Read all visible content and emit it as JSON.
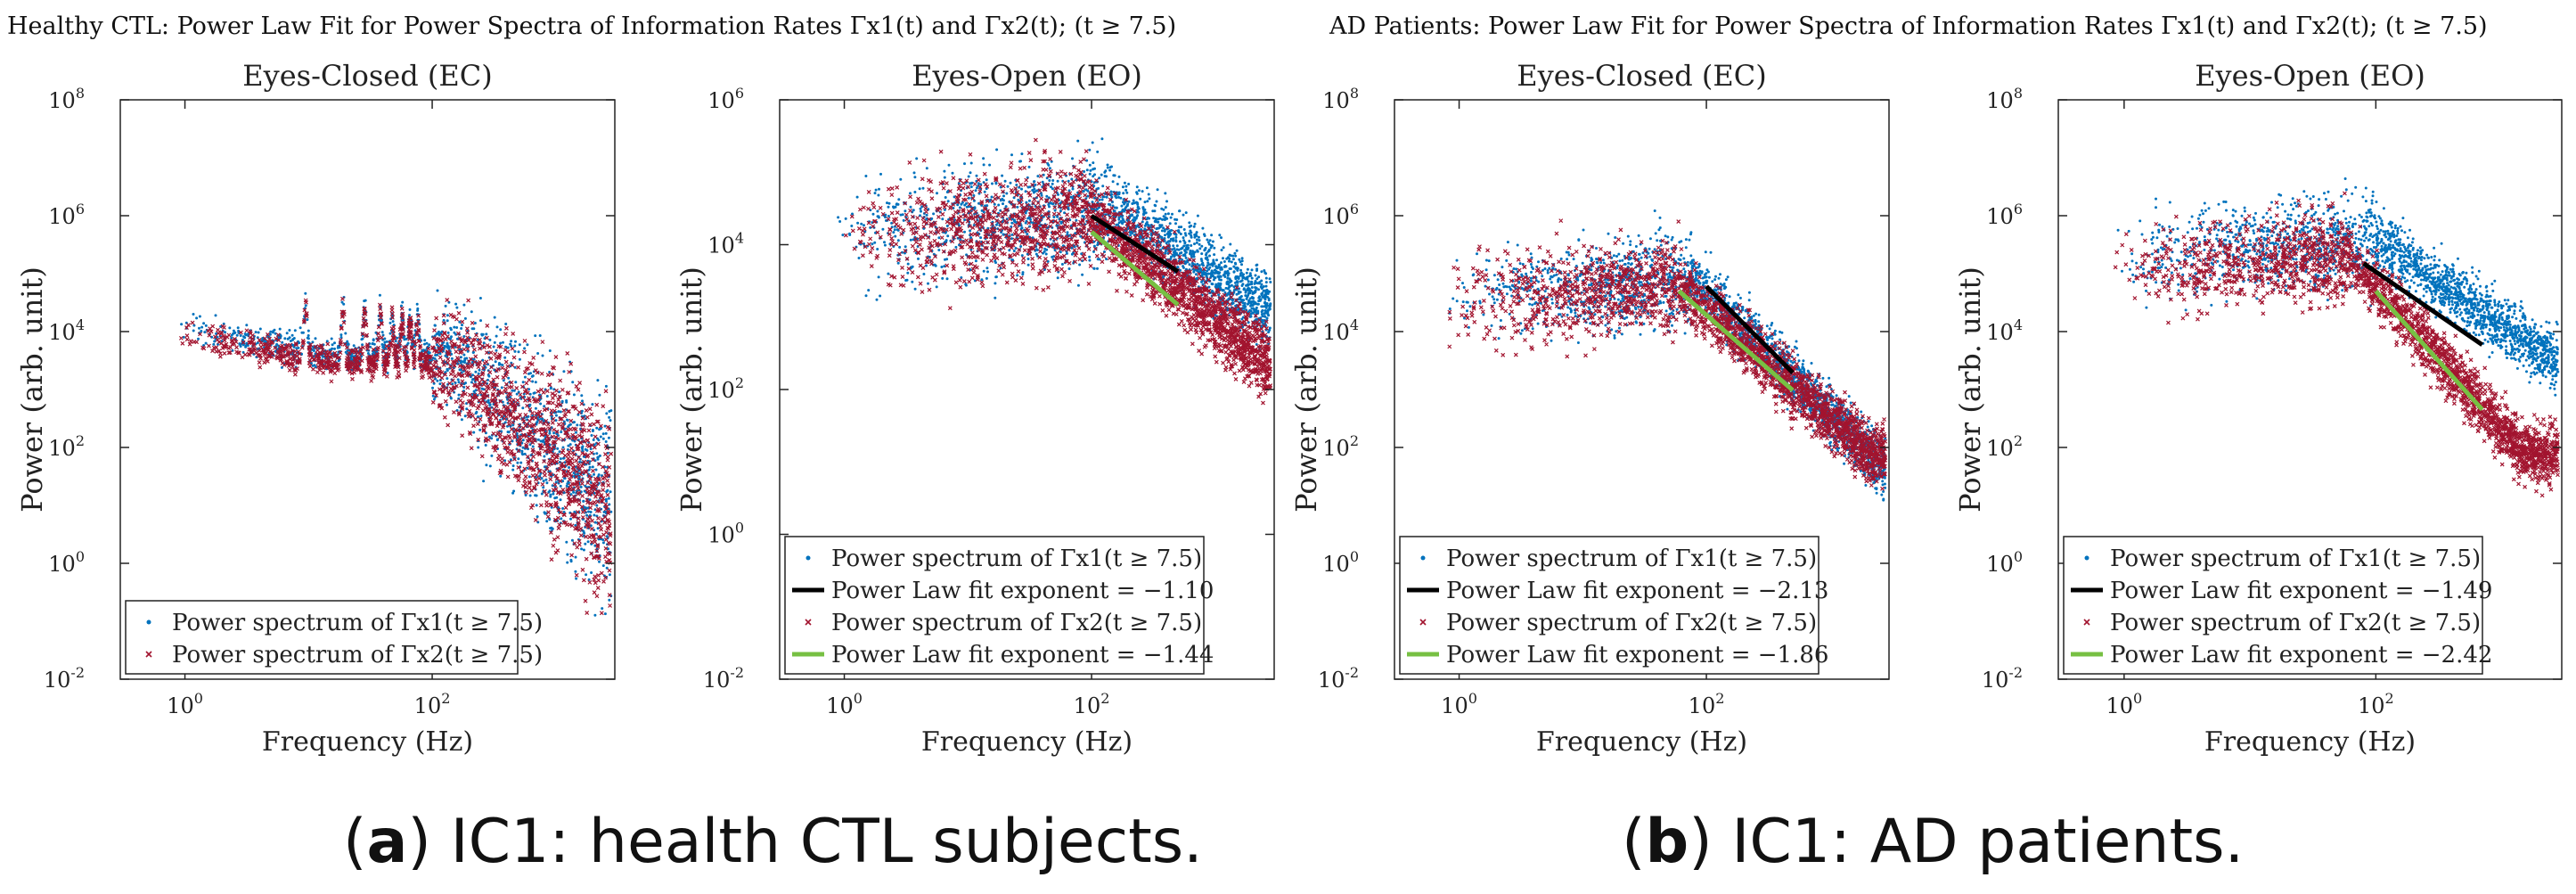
{
  "groups": [
    {
      "title": "Healthy CTL: Power Law Fit for Power Spectra of Information Rates Γx1(t) and Γx2(t); (t ≥ 7.5)",
      "caption_label": "a",
      "caption_text": "IC1: health CTL subjects."
    },
    {
      "title": "AD Patients: Power Law Fit for Power Spectra of Information Rates Γx1(t) and Γx2(t); (t ≥ 7.5)",
      "caption_label": "b",
      "caption_text": "IC1: AD patients."
    }
  ],
  "colors": {
    "series1": "#0072bd",
    "series2": "#a2142f",
    "fit1": "#000000",
    "fit2": "#77c043"
  },
  "chart_data": [
    {
      "type": "scatter",
      "group": "Healthy CTL",
      "title": "Eyes-Closed (EC)",
      "xlabel": "Frequency (Hz)",
      "ylabel": "Power (arb. unit)",
      "xscale": "log",
      "yscale": "log",
      "xlim": [
        0.3,
        3000
      ],
      "ylim": [
        0.01,
        100000000
      ],
      "xticks": [
        "10^0",
        "10^2"
      ],
      "yticks": [
        "10^-2",
        "10^0",
        "10^2",
        "10^4",
        "10^6",
        "10^8"
      ],
      "legend_position": "bottom-left",
      "spectrum_shape": "ec",
      "series": [
        {
          "name": "Power spectrum of Γx1(t ≥ 7.5)",
          "kind": "points",
          "color_key": "series1",
          "low_freq_power": 12000,
          "peaks_hz": [
            9.5,
            19,
            28.5,
            38,
            47.5,
            57,
            66.5,
            76
          ]
        },
        {
          "name": "Power spectrum of Γx2(t ≥ 7.5)",
          "kind": "points",
          "color_key": "series2",
          "low_freq_power": 9000,
          "peaks_hz": [
            9.5,
            19,
            28.5,
            38,
            47.5,
            57,
            66.5,
            76
          ]
        }
      ]
    },
    {
      "type": "scatter",
      "group": "Healthy CTL",
      "title": "Eyes-Open (EO)",
      "xlabel": "Frequency (Hz)",
      "ylabel": "Power (arb. unit)",
      "xscale": "log",
      "yscale": "log",
      "xlim": [
        0.3,
        3000
      ],
      "ylim": [
        0.01,
        1000000
      ],
      "xticks": [
        "10^0",
        "10^2"
      ],
      "yticks": [
        "10^-2",
        "10^0",
        "10^2",
        "10^4",
        "10^6"
      ],
      "legend_position": "bottom-left",
      "spectrum_shape": "eo",
      "series": [
        {
          "name": "Power spectrum of Γx1(t ≥ 7.5)",
          "kind": "points",
          "color_key": "series1",
          "plateau_power": 30000,
          "knee_hz": 150,
          "slope": -1.1
        },
        {
          "name": "Power Law fit exponent = −1.10",
          "kind": "fit",
          "color_key": "fit1",
          "exponent": -1.1,
          "x_range": [
            100,
            500
          ],
          "y_at_start": 25000
        },
        {
          "name": "Power spectrum of Γx2(t ≥ 7.5)",
          "kind": "points",
          "color_key": "series2",
          "plateau_power": 25000,
          "knee_hz": 100,
          "slope": -1.44
        },
        {
          "name": "Power Law fit exponent = −1.44",
          "kind": "fit",
          "color_key": "fit2",
          "exponent": -1.44,
          "x_range": [
            100,
            500
          ],
          "y_at_start": 15000
        }
      ]
    },
    {
      "type": "scatter",
      "group": "AD Patients",
      "title": "Eyes-Closed (EC)",
      "xlabel": "Frequency (Hz)",
      "ylabel": "Power (arb. unit)",
      "xscale": "log",
      "yscale": "log",
      "xlim": [
        0.3,
        3000
      ],
      "ylim": [
        0.01,
        100000000
      ],
      "xticks": [
        "10^0",
        "10^2"
      ],
      "yticks": [
        "10^-2",
        "10^0",
        "10^2",
        "10^4",
        "10^6",
        "10^8"
      ],
      "legend_position": "bottom-left",
      "spectrum_shape": "eo",
      "series": [
        {
          "name": "Power spectrum of Γx1(t ≥ 7.5)",
          "kind": "points",
          "color_key": "series1",
          "plateau_power": 80000,
          "knee_hz": 80,
          "slope": -2.13,
          "floor_power": 20
        },
        {
          "name": "Power Law fit exponent = −2.13",
          "kind": "fit",
          "color_key": "fit1",
          "exponent": -2.13,
          "x_range": [
            100,
            500
          ],
          "y_at_start": 60000
        },
        {
          "name": "Power spectrum of Γx2(t ≥ 7.5)",
          "kind": "points",
          "color_key": "series2",
          "plateau_power": 60000,
          "knee_hz": 60,
          "slope": -1.86,
          "floor_power": 80
        },
        {
          "name": "Power Law fit exponent = −1.86",
          "kind": "fit",
          "color_key": "fit2",
          "exponent": -1.86,
          "x_range": [
            60,
            500
          ],
          "y_at_start": 50000
        }
      ]
    },
    {
      "type": "scatter",
      "group": "AD Patients",
      "title": "Eyes-Open (EO)",
      "xlabel": "Frequency (Hz)",
      "ylabel": "Power (arb. unit)",
      "xscale": "log",
      "yscale": "log",
      "xlim": [
        0.3,
        3000
      ],
      "ylim": [
        0.01,
        100000000
      ],
      "xticks": [
        "10^0",
        "10^2"
      ],
      "yticks": [
        "10^-2",
        "10^0",
        "10^2",
        "10^4",
        "10^6",
        "10^8"
      ],
      "legend_position": "bottom-left",
      "spectrum_shape": "eo",
      "series": [
        {
          "name": "Power spectrum of Γx1(t ≥ 7.5)",
          "kind": "points",
          "color_key": "series1",
          "plateau_power": 400000,
          "knee_hz": 100,
          "slope": -1.49,
          "floor_power": 400
        },
        {
          "name": "Power Law fit exponent = −1.49",
          "kind": "fit",
          "color_key": "fit1",
          "exponent": -1.49,
          "x_range": [
            80,
            700
          ],
          "y_at_start": 150000
        },
        {
          "name": "Power spectrum of Γx2(t ≥ 7.5)",
          "kind": "points",
          "color_key": "series2",
          "plateau_power": 200000,
          "knee_hz": 60,
          "slope": -2.42,
          "floor_power": 80
        },
        {
          "name": "Power Law fit exponent = −2.42",
          "kind": "fit",
          "color_key": "fit2",
          "exponent": -2.42,
          "x_range": [
            100,
            700
          ],
          "y_at_start": 50000
        }
      ]
    }
  ]
}
